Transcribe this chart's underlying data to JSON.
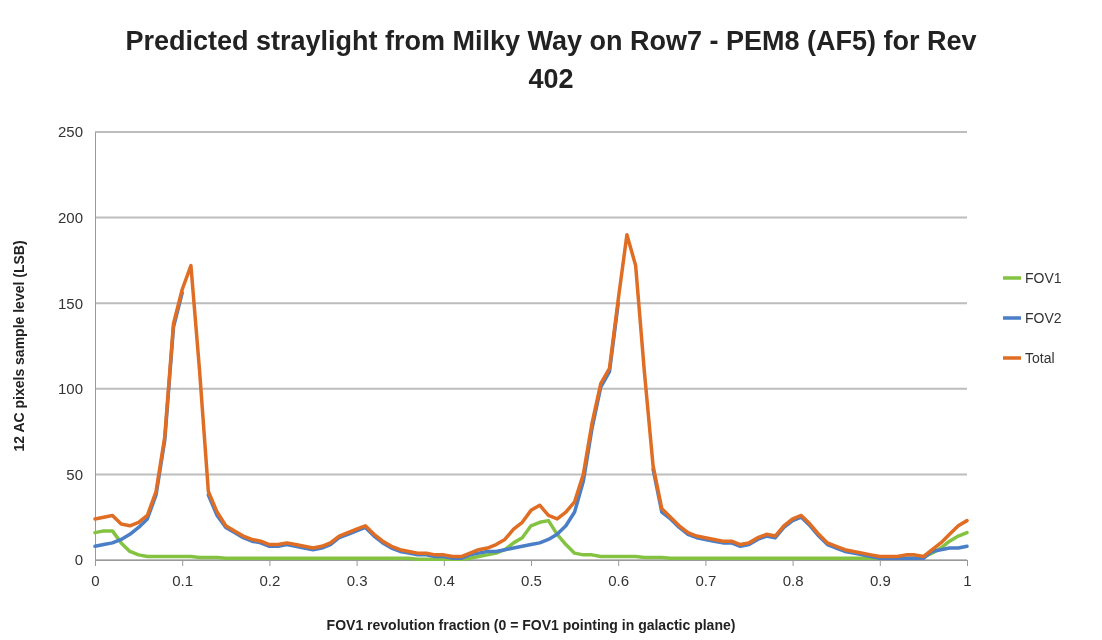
{
  "chart_data": {
    "type": "line",
    "title": "Predicted straylight from Milky Way on Row7 - PEM8 (AF5) for Rev 402",
    "xlabel": "FOV1 revolution fraction (0 = FOV1 pointing in galactic plane)",
    "ylabel": "12 AC pixels sample level (LSB)",
    "x": [
      0,
      0.01,
      0.02,
      0.03,
      0.04,
      0.05,
      0.06,
      0.07,
      0.08,
      0.09,
      0.1,
      0.11,
      0.12,
      0.13,
      0.14,
      0.15,
      0.16,
      0.17,
      0.18,
      0.19,
      0.2,
      0.21,
      0.22,
      0.23,
      0.24,
      0.25,
      0.26,
      0.27,
      0.28,
      0.29,
      0.3,
      0.31,
      0.32,
      0.33,
      0.34,
      0.35,
      0.36,
      0.37,
      0.38,
      0.39,
      0.4,
      0.41,
      0.42,
      0.43,
      0.44,
      0.45,
      0.46,
      0.47,
      0.48,
      0.49,
      0.5,
      0.51,
      0.52,
      0.53,
      0.54,
      0.55,
      0.56,
      0.57,
      0.58,
      0.59,
      0.6,
      0.61,
      0.62,
      0.63,
      0.64,
      0.65,
      0.66,
      0.67,
      0.68,
      0.69,
      0.7,
      0.71,
      0.72,
      0.73,
      0.74,
      0.75,
      0.76,
      0.77,
      0.78,
      0.79,
      0.8,
      0.81,
      0.82,
      0.83,
      0.84,
      0.85,
      0.86,
      0.87,
      0.88,
      0.89,
      0.9,
      0.91,
      0.92,
      0.93,
      0.94,
      0.95,
      0.96,
      0.97,
      0.98,
      0.99,
      1
    ],
    "series": [
      {
        "name": "FOV1",
        "color": "#84c341",
        "values": [
          16,
          17,
          17,
          10,
          5,
          3,
          2,
          2,
          2,
          2,
          2,
          2,
          1.5,
          1.5,
          1.5,
          1,
          1,
          1,
          1,
          1,
          1,
          1,
          1,
          1,
          1,
          1,
          1,
          1,
          1,
          1,
          1,
          1,
          1,
          1,
          1,
          1,
          1,
          0.5,
          0.5,
          0.5,
          0.5,
          0.5,
          0.5,
          1,
          2,
          3,
          4,
          6,
          10,
          13,
          20,
          22,
          23,
          15,
          9,
          4,
          3,
          3,
          2,
          2,
          2,
          2,
          2,
          1.5,
          1.5,
          1.5,
          1,
          1,
          1,
          1,
          1,
          1,
          1,
          1,
          1,
          1,
          1,
          1,
          1,
          1,
          1,
          1,
          1,
          1,
          1,
          1,
          1,
          1,
          1,
          1,
          1,
          1,
          1,
          1,
          1,
          2,
          4,
          7,
          11,
          14,
          16
        ]
      },
      {
        "name": "FOV2",
        "color": "#4a7ec6",
        "values": [
          8,
          9,
          10,
          12,
          15,
          19,
          24,
          38,
          70,
          136,
          156,
          null,
          null,
          38,
          26,
          19,
          16,
          13,
          11,
          10,
          8,
          8,
          9,
          8,
          7,
          6,
          7,
          9,
          13,
          15,
          17,
          19,
          14,
          10,
          7,
          5,
          4,
          3,
          3,
          2,
          2,
          1,
          1,
          3,
          4,
          5,
          5,
          6,
          7,
          8,
          9,
          10,
          12,
          15,
          20,
          28,
          46,
          77,
          101,
          110,
          150,
          null,
          null,
          null,
          53,
          28,
          24,
          19,
          15,
          13,
          12,
          11,
          10,
          10,
          8,
          9,
          12,
          14,
          13,
          19,
          23,
          25,
          20,
          14,
          9,
          7,
          5,
          4,
          3,
          2,
          1,
          1,
          1,
          1,
          1,
          1,
          5,
          6,
          7,
          7,
          8
        ]
      },
      {
        "name": "Total",
        "color": "#e06d24",
        "values": [
          24,
          25,
          26,
          21,
          20,
          22,
          26,
          40,
          72,
          138,
          158,
          172,
          110,
          40,
          28,
          20,
          17,
          14,
          12,
          11,
          9,
          9,
          10,
          9,
          8,
          7,
          8,
          10,
          14,
          16,
          18,
          20,
          15,
          11,
          8,
          6,
          5,
          4,
          4,
          3,
          3,
          2,
          2,
          4,
          6,
          7,
          9,
          12,
          18,
          22,
          29,
          32,
          26,
          24,
          28,
          34,
          50,
          80,
          103,
          112,
          152,
          190,
          172,
          110,
          55,
          30,
          25,
          20,
          16,
          14,
          13,
          12,
          11,
          11,
          9,
          10,
          13,
          15,
          14,
          20,
          24,
          26,
          21,
          15,
          10,
          8,
          6,
          5,
          4,
          3,
          2,
          2,
          2,
          3,
          3,
          2,
          6,
          10,
          15,
          20,
          23
        ]
      }
    ],
    "xlim": [
      0,
      1
    ],
    "xticks": [
      0,
      0.1,
      0.2,
      0.3,
      0.4,
      0.5,
      0.6,
      0.7,
      0.8,
      0.9,
      1
    ],
    "ylim": [
      0,
      250
    ],
    "yticks": [
      0,
      50,
      100,
      150,
      200,
      250
    ],
    "grid": "y",
    "legend": "right",
    "marker": "none",
    "line_style": "solid"
  }
}
